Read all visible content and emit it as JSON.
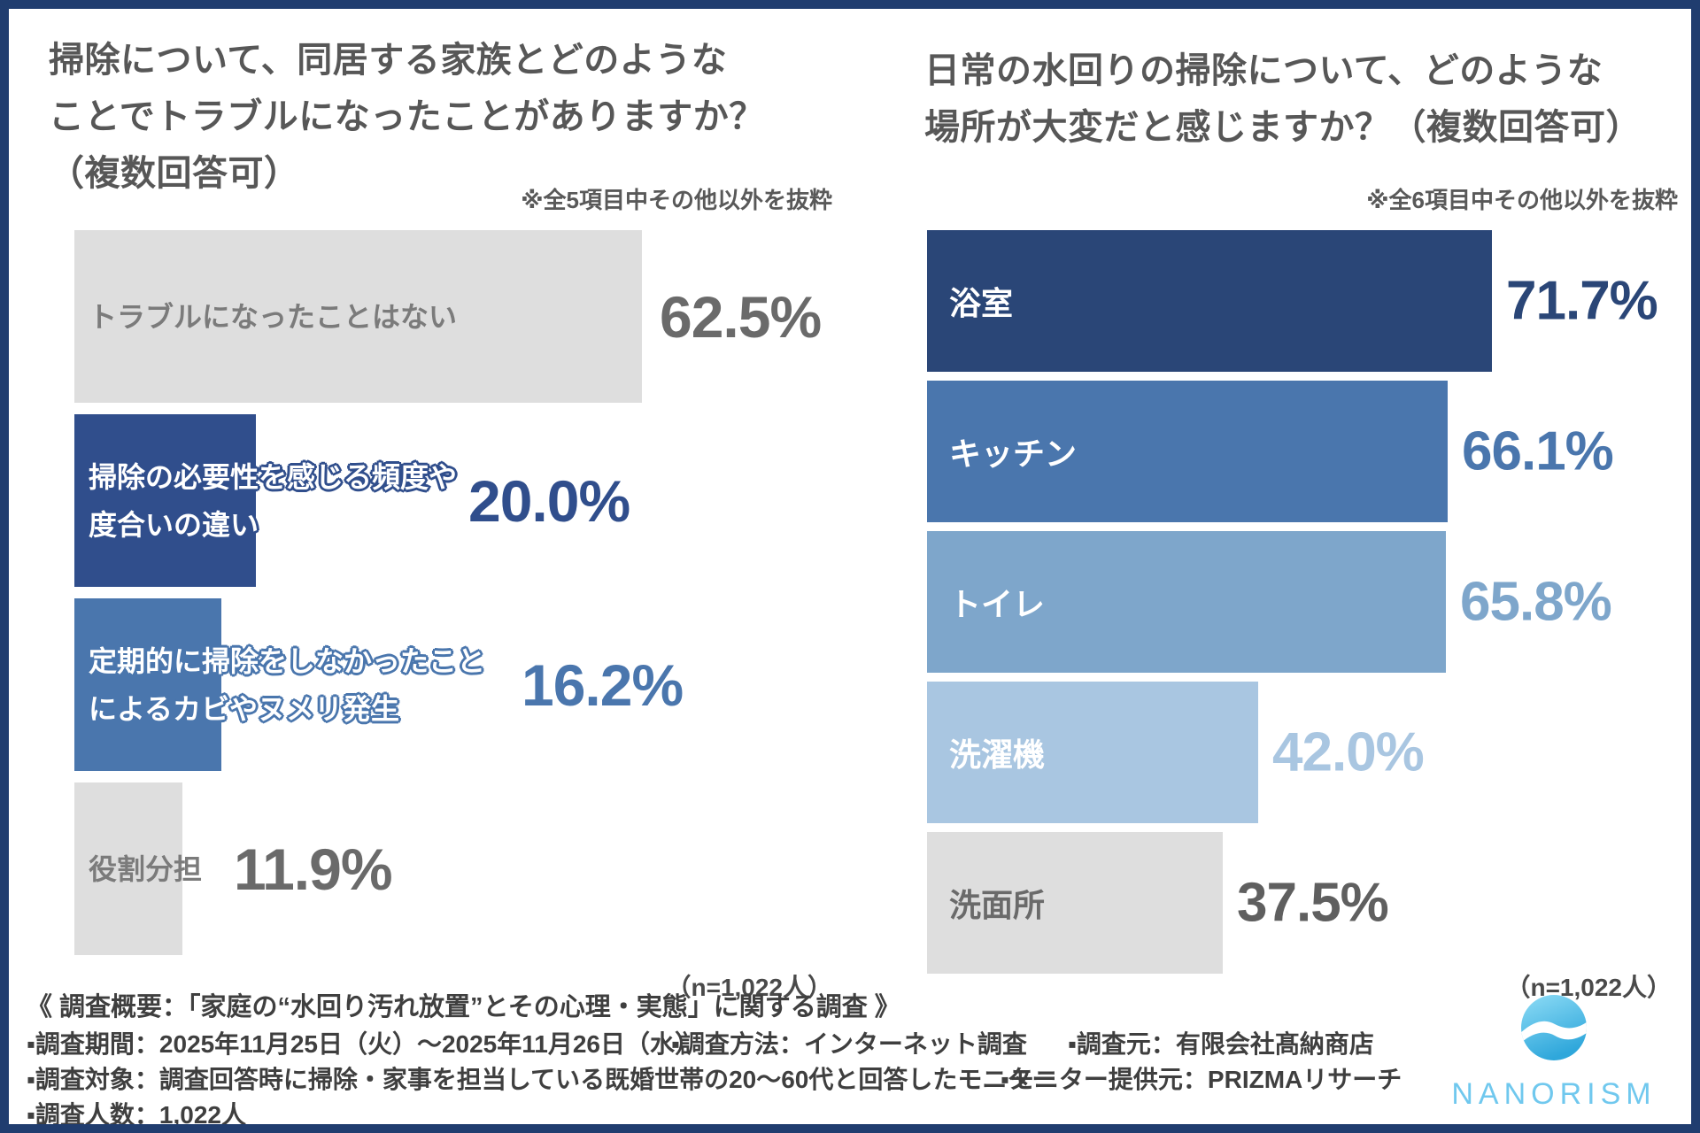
{
  "frame": {
    "border_color": "#203d6f",
    "background": "#ffffff"
  },
  "chart_data": [
    {
      "type": "bar",
      "orientation": "horizontal",
      "title": "掃除について、同居する家族とどのようなことでトラブルになったことがありますか？（複数回答可）",
      "title_lines": [
        "掃除について、同居する家族とどのような",
        "ことでトラブルになったことがありますか？",
        "（複数回答可）"
      ],
      "note": "※全5項目中その他以外を抜粋",
      "n_label": "（n=1,022人）",
      "categories": [
        "トラブルになったことはない",
        "掃除の必要性を感じる頻度や度合いの違い",
        "定期的に掃除をしなかったことによるカビやヌメリ発生",
        "役割分担"
      ],
      "category_lines": [
        [
          "トラブルになったことはない"
        ],
        [
          "掃除の必要性を感じる頻度や",
          "度合いの違い"
        ],
        [
          "定期的に掃除をしなかったこと",
          "によるカビやヌメリ発生"
        ],
        [
          "役割分担"
        ]
      ],
      "values": [
        62.5,
        20.0,
        16.2,
        11.9
      ],
      "value_labels": [
        "62.5%",
        "20.0%",
        "16.2%",
        "11.9%"
      ],
      "bar_colors": [
        "#dedede",
        "#304e8c",
        "#4a76ad",
        "#dedede"
      ],
      "value_colors": [
        "#6a6a6a",
        "#304e8c",
        "#4a76ad",
        "#6a6a6a"
      ],
      "label_colors": [
        "#7b7b7b",
        "#ffffff",
        "#ffffff",
        "#7b7b7b"
      ],
      "xlim": [
        0,
        100
      ],
      "grid": false,
      "legend": false
    },
    {
      "type": "bar",
      "orientation": "horizontal",
      "title": "日常の水回りの掃除について、どのような場所が大変だと感じますか？（複数回答可）",
      "title_lines": [
        "日常の水回りの掃除について、どのような",
        "場所が大変だと感じますか？（複数回答可）"
      ],
      "note": "※全6項目中その他以外を抜粋",
      "n_label": "（n=1,022人）",
      "categories": [
        "浴室",
        "キッチン",
        "トイレ",
        "洗濯機",
        "洗面所"
      ],
      "values": [
        71.7,
        66.1,
        65.8,
        42.0,
        37.5
      ],
      "value_labels": [
        "71.7%",
        "66.1%",
        "65.8%",
        "42.0%",
        "37.5%"
      ],
      "bar_colors": [
        "#2a4677",
        "#4a76ad",
        "#7ea6cb",
        "#a9c6e1",
        "#dedede"
      ],
      "value_colors": [
        "#2a4677",
        "#4a76ad",
        "#7ea6cb",
        "#a9c6e1",
        "#5f5f5f"
      ],
      "label_colors": [
        "#ffffff",
        "#ffffff",
        "#ffffff",
        "#ffffff",
        "#6a6a6a"
      ],
      "xlim": [
        0,
        100
      ],
      "grid": false,
      "legend": false
    }
  ],
  "footer": {
    "summary": "《 調査概要：「家庭の“水回り汚れ放置”とその心理・実態」に関する調査 》",
    "line2": [
      "▪調査期間：2025年11月25日（火）～2025年11月26日（水）",
      "▪調査方法：インターネット調査",
      "▪調査元：有限会社髙納商店"
    ],
    "line3": [
      "▪調査対象：調査回答時に掃除・家事を担当している既婚世帯の20～60代と回答したモニター",
      "▪モニター提供元：PRIZMAリサーチ"
    ],
    "line4": "▪調査人数：1,022人"
  },
  "logo": {
    "word": "NANORISM",
    "brand_blue": "#70c8ee",
    "icon": "wave-circle-icon"
  }
}
